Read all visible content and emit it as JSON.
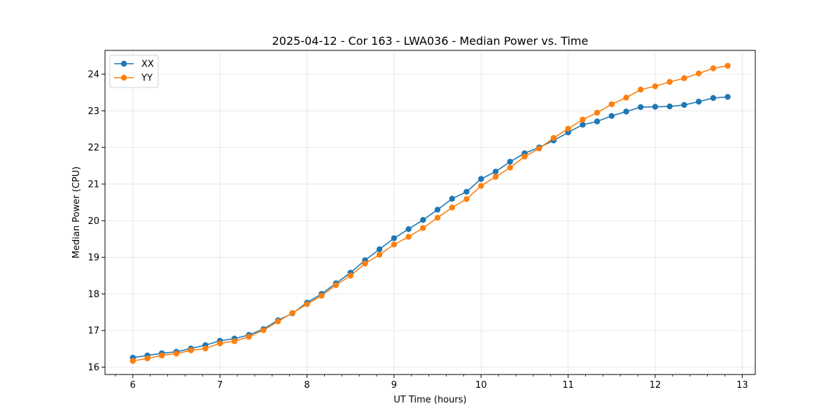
{
  "chart_data": {
    "type": "line",
    "title": "2025-04-12 - Cor 163 - LWA036 - Median Power vs. Time",
    "xlabel": "UT Time (hours)",
    "ylabel": "Median Power (CPU)",
    "xlim": [
      5.68,
      13.15
    ],
    "ylim": [
      15.8,
      24.65
    ],
    "xticks": [
      6,
      7,
      8,
      9,
      10,
      11,
      12,
      13
    ],
    "yticks": [
      16,
      17,
      18,
      19,
      20,
      21,
      22,
      23,
      24
    ],
    "grid": true,
    "legend_position": "top-left",
    "x": [
      6.0,
      6.167,
      6.333,
      6.5,
      6.667,
      6.833,
      7.0,
      7.167,
      7.333,
      7.5,
      7.667,
      7.833,
      8.0,
      8.167,
      8.333,
      8.5,
      8.667,
      8.833,
      9.0,
      9.167,
      9.333,
      9.5,
      9.667,
      9.833,
      10.0,
      10.167,
      10.333,
      10.5,
      10.667,
      10.833,
      11.0,
      11.167,
      11.333,
      11.5,
      11.667,
      11.833,
      12.0,
      12.167,
      12.333,
      12.5,
      12.667,
      12.833
    ],
    "series": [
      {
        "name": "XX",
        "color": "#1f77b4",
        "values": [
          16.26,
          16.32,
          16.38,
          16.42,
          16.51,
          16.6,
          16.72,
          16.78,
          16.88,
          17.04,
          17.28,
          17.47,
          17.76,
          18.0,
          18.29,
          18.58,
          18.92,
          19.22,
          19.52,
          19.77,
          20.02,
          20.3,
          20.6,
          20.79,
          21.14,
          21.34,
          21.61,
          21.84,
          22.0,
          22.19,
          22.41,
          22.62,
          22.71,
          22.86,
          22.98,
          23.1,
          23.11,
          23.12,
          23.16,
          23.25,
          23.35,
          23.38
        ]
      },
      {
        "name": "YY",
        "color": "#ff7f0e",
        "values": [
          16.17,
          16.24,
          16.32,
          16.37,
          16.46,
          16.51,
          16.65,
          16.71,
          16.83,
          17.01,
          17.25,
          17.48,
          17.72,
          17.95,
          18.24,
          18.5,
          18.83,
          19.07,
          19.35,
          19.56,
          19.8,
          20.08,
          20.36,
          20.59,
          20.95,
          21.2,
          21.45,
          21.75,
          21.97,
          22.26,
          22.51,
          22.76,
          22.95,
          23.18,
          23.36,
          23.58,
          23.67,
          23.79,
          23.89,
          24.02,
          24.16,
          24.23
        ]
      }
    ]
  }
}
